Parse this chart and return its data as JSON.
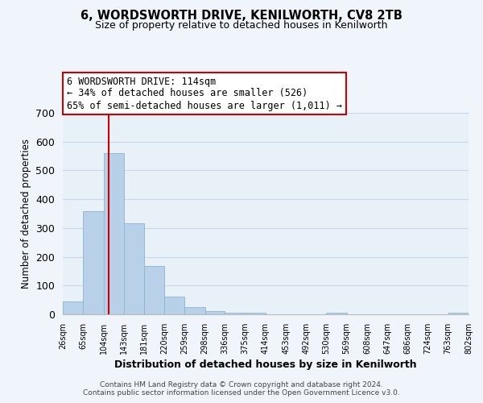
{
  "title": "6, WORDSWORTH DRIVE, KENILWORTH, CV8 2TB",
  "subtitle": "Size of property relative to detached houses in Kenilworth",
  "xlabel": "Distribution of detached houses by size in Kenilworth",
  "ylabel": "Number of detached properties",
  "bar_color": "#b8d0e8",
  "bar_edge_color": "#8ab4d4",
  "grid_color": "#c8d8ea",
  "background_color": "#e8f0f8",
  "fig_background": "#f0f5fc",
  "annotation_box_color": "#ffffff",
  "annotation_border_color": "#cc0000",
  "vline_color": "#cc0000",
  "vline_x": 114,
  "bins": [
    26,
    65,
    104,
    143,
    181,
    220,
    259,
    298,
    336,
    375,
    414,
    453,
    492,
    530,
    569,
    608,
    647,
    686,
    724,
    763,
    802
  ],
  "bin_labels": [
    "26sqm",
    "65sqm",
    "104sqm",
    "143sqm",
    "181sqm",
    "220sqm",
    "259sqm",
    "298sqm",
    "336sqm",
    "375sqm",
    "414sqm",
    "453sqm",
    "492sqm",
    "530sqm",
    "569sqm",
    "608sqm",
    "647sqm",
    "686sqm",
    "724sqm",
    "763sqm",
    "802sqm"
  ],
  "counts": [
    46,
    358,
    560,
    316,
    168,
    61,
    24,
    11,
    6,
    5,
    1,
    0,
    0,
    5,
    0,
    0,
    0,
    0,
    0,
    5
  ],
  "ylim": [
    0,
    700
  ],
  "yticks": [
    0,
    100,
    200,
    300,
    400,
    500,
    600,
    700
  ],
  "annotation_line1": "6 WORDSWORTH DRIVE: 114sqm",
  "annotation_line2": "← 34% of detached houses are smaller (526)",
  "annotation_line3": "65% of semi-detached houses are larger (1,011) →",
  "footer_line1": "Contains HM Land Registry data © Crown copyright and database right 2024.",
  "footer_line2": "Contains public sector information licensed under the Open Government Licence v3.0."
}
